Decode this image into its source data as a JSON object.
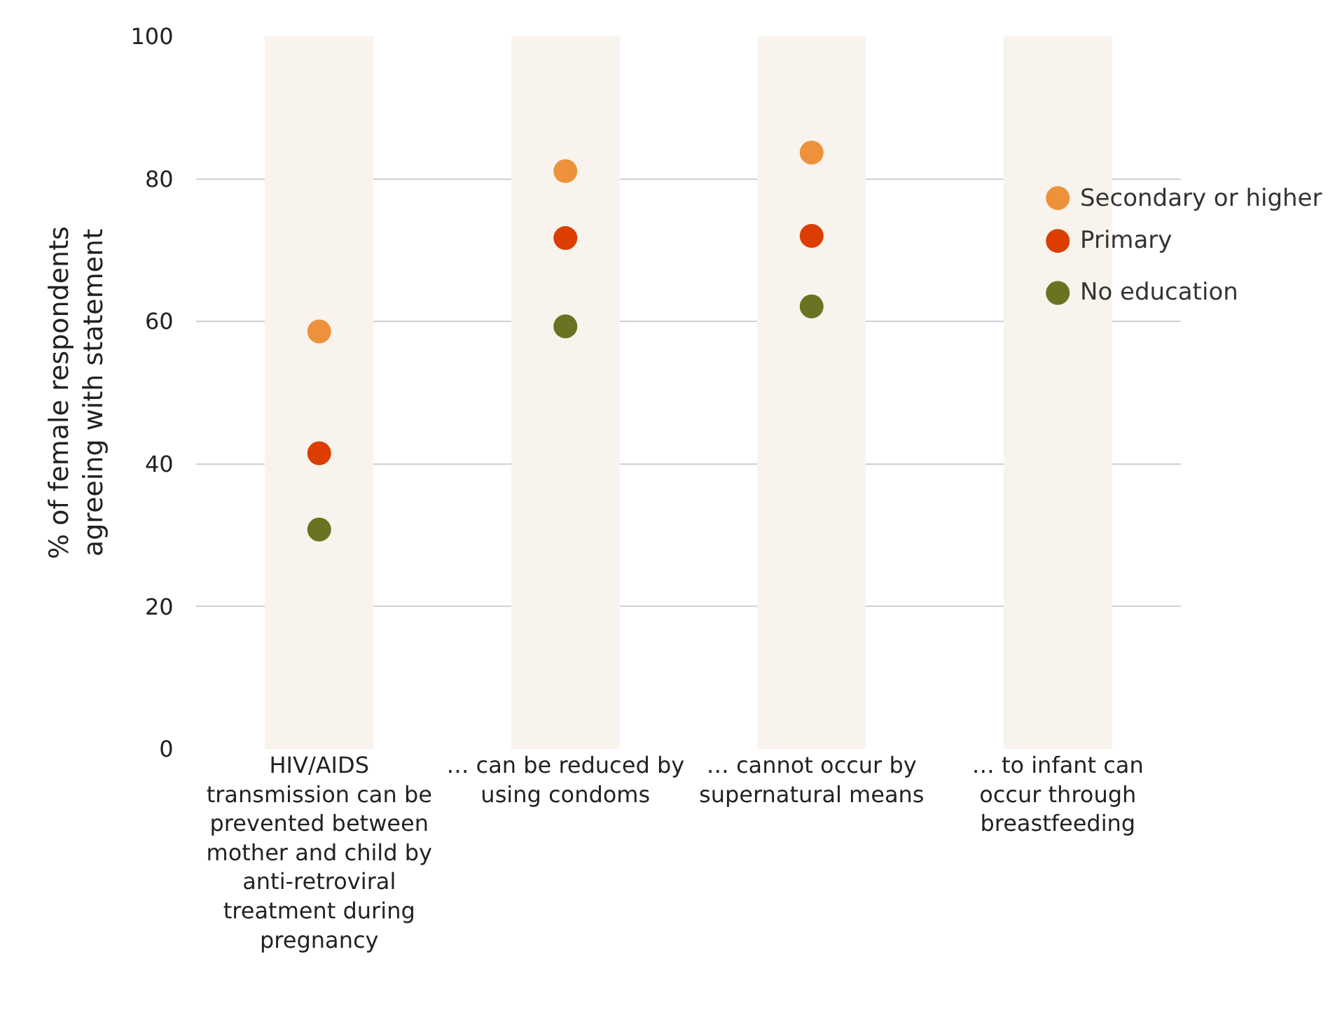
{
  "chart_data": {
    "type": "scatter",
    "ylabel": "% of female respondents agreeing with statement",
    "categories": [
      "HIV/AIDS transmission can be prevented between mother and child by anti-retroviral treatment during pregnancy",
      "… can be reduced by using condoms",
      "… cannot occur by supernatural means",
      "… to infant can occur through breastfeeding"
    ],
    "series": [
      {
        "type": "bar",
        "color": "#f8f3ed",
        "values": [
          100,
          100,
          100,
          100
        ]
      },
      {
        "name": "Secondary or higher",
        "color": "#ed923b",
        "values": [
          58.6,
          81.1,
          83.7,
          77.3
        ]
      },
      {
        "name": "Primary",
        "color": "#db3e00",
        "values": [
          41.5,
          71.7,
          72.0,
          71.3
        ]
      },
      {
        "name": "No education",
        "color": "#6a7321",
        "values": [
          30.8,
          59.3,
          62.1,
          64.0
        ]
      }
    ],
    "ylim": [
      0,
      100
    ],
    "yticks": [
      0,
      20,
      40,
      60,
      80,
      100
    ],
    "grid": true,
    "legend": false,
    "marker": "circle"
  }
}
